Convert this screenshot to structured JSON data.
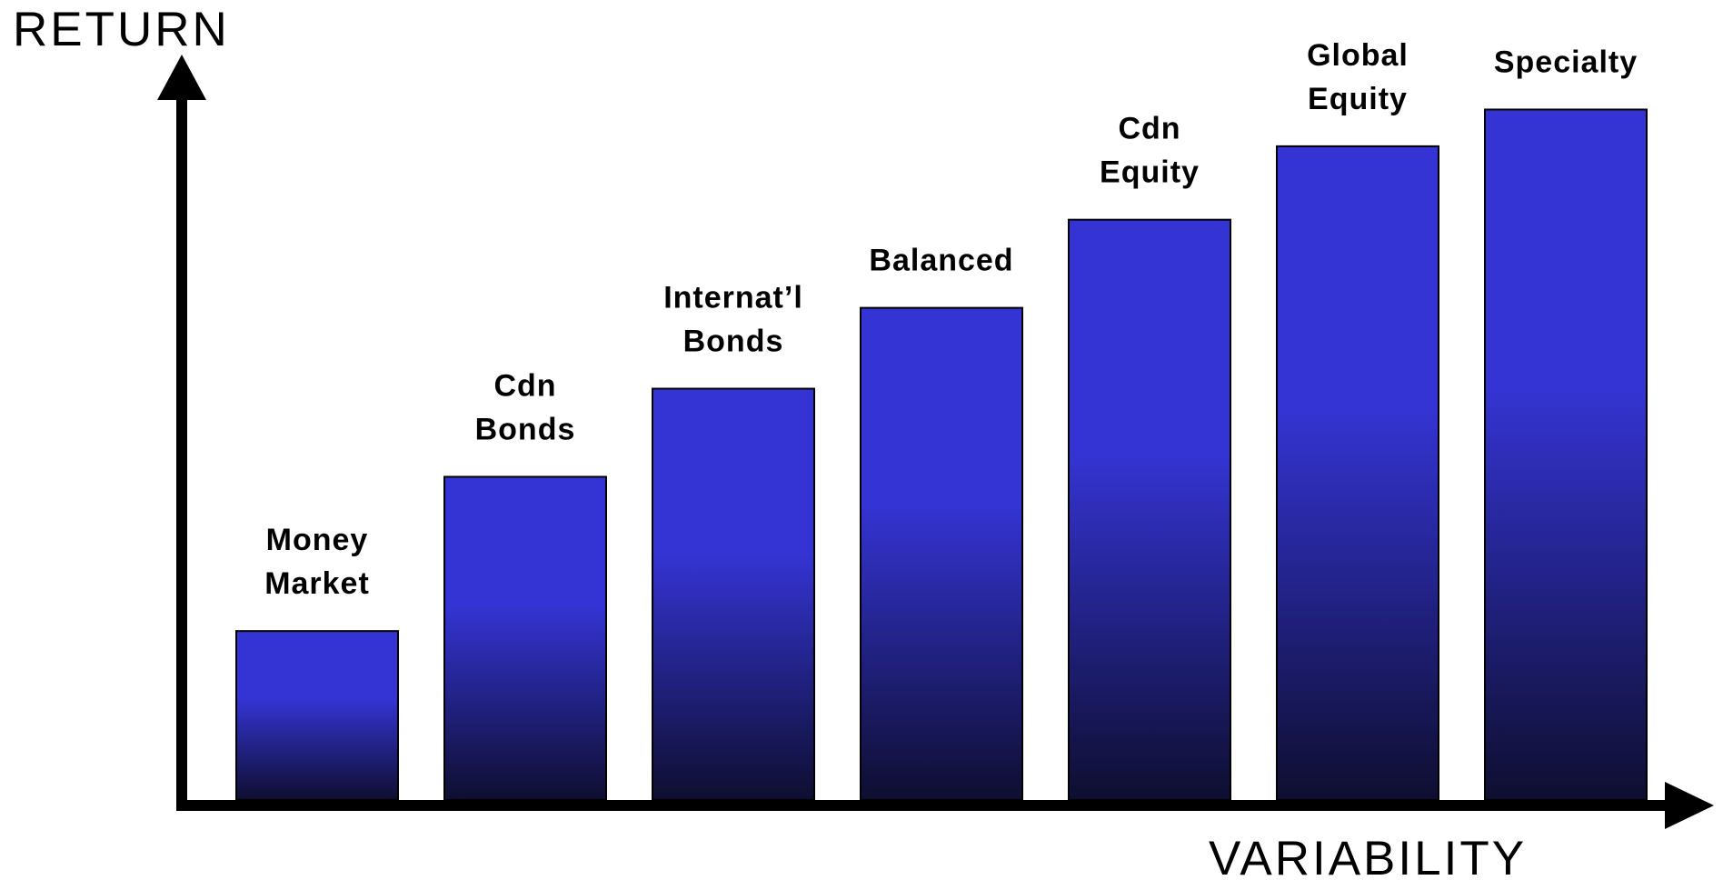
{
  "chart_data": {
    "type": "bar",
    "x_label": "VARIABILITY",
    "y_label": "RETURN",
    "categories": [
      "Money Market",
      "Cdn Bonds",
      "Internat’l Bonds",
      "Balanced",
      "Cdn Equity",
      "Global Equity",
      "Specialty"
    ],
    "values": [
      23,
      44,
      56,
      67,
      79,
      89,
      94
    ],
    "color": "#3434d4",
    "ylim": [
      0,
      100
    ]
  }
}
